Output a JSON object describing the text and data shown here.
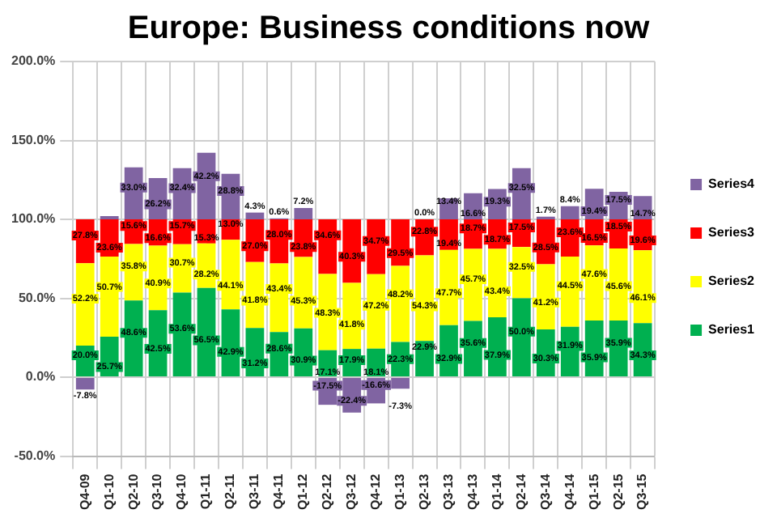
{
  "chart_data": {
    "type": "bar",
    "title": "Europe: Business conditions now",
    "stacked": true,
    "legend": "right",
    "grid": true,
    "categories": [
      "Q4-09",
      "Q1-10",
      "Q2-10",
      "Q3-10",
      "Q4-10",
      "Q1-11",
      "Q2-11",
      "Q3-11",
      "Q4-11",
      "Q1-12",
      "Q2-12",
      "Q3-12",
      "Q4-12",
      "Q1-13",
      "Q2-13",
      "Q3-13",
      "Q4-13",
      "Q1-14",
      "Q2-14",
      "Q3-14",
      "Q4-14",
      "Q1-15",
      "Q2-15",
      "Q3-15"
    ],
    "ylim": [
      -50,
      200
    ],
    "yticks": [
      {
        "value": -50,
        "label": "-50.0%"
      },
      {
        "value": 0,
        "label": "0.0%"
      },
      {
        "value": 50,
        "label": "50.0%"
      },
      {
        "value": 100,
        "label": "100.0%"
      },
      {
        "value": 150,
        "label": "150.0%"
      },
      {
        "value": 200,
        "label": "200.0%"
      }
    ],
    "series": [
      {
        "name": "Series1",
        "color": "#00b050",
        "values": [
          20.0,
          25.7,
          48.6,
          42.5,
          53.6,
          56.5,
          42.9,
          31.2,
          28.6,
          30.9,
          17.1,
          17.9,
          18.1,
          22.3,
          22.9,
          32.9,
          35.6,
          37.9,
          50.0,
          30.3,
          31.9,
          35.9,
          35.9,
          34.3
        ],
        "value_labels": [
          "20.0%",
          "25.7%",
          "48.6%",
          "42.5%",
          "53.6%",
          "56.5%",
          "42.9%",
          "31.2%",
          "28.6%",
          "30.9%",
          "17.1%",
          "17.9%",
          "18.1%",
          "22.3%",
          "22.9%",
          "32.9%",
          "35.6%",
          "37.9%",
          "50.0%",
          "30.3%",
          "31.9%",
          "35.9%",
          "35.9%",
          "34.3%"
        ]
      },
      {
        "name": "Series2",
        "color": "#ffff00",
        "values": [
          52.2,
          50.7,
          35.8,
          40.9,
          30.7,
          28.2,
          44.1,
          41.8,
          43.4,
          45.3,
          48.3,
          41.8,
          47.2,
          48.2,
          54.3,
          47.7,
          45.7,
          43.4,
          32.5,
          41.2,
          44.5,
          47.6,
          45.6,
          46.1
        ],
        "value_labels": [
          "52.2%",
          "50.7%",
          "35.8%",
          "40.9%",
          "30.7%",
          "28.2%",
          "44.1%",
          "41.8%",
          "43.4%",
          "45.3%",
          "48.3%",
          "41.8%",
          "47.2%",
          "48.2%",
          "54.3%",
          "47.7%",
          "45.7%",
          "43.4%",
          "32.5%",
          "41.2%",
          "44.5%",
          "47.6%",
          "45.6%",
          "46.1%"
        ]
      },
      {
        "name": "Series3",
        "color": "#ff0000",
        "values": [
          27.8,
          23.6,
          15.6,
          16.6,
          15.7,
          15.3,
          13.0,
          27.0,
          28.0,
          23.8,
          34.6,
          40.3,
          34.7,
          29.5,
          22.8,
          19.4,
          18.7,
          18.7,
          17.5,
          28.5,
          23.6,
          16.5,
          18.5,
          19.6
        ],
        "value_labels": [
          "27.8%",
          "23.6%",
          "15.6%",
          "16.6%",
          "15.7%",
          "15.3%",
          "13.0%",
          "27.0%",
          "28.0%",
          "23.8%",
          "34.6%",
          "40.3%",
          "34.7%",
          "29.5%",
          "22.8%",
          "19.4%",
          "18.7%",
          "18.7%",
          "17.5%",
          "28.5%",
          "23.6%",
          "16.5%",
          "18.5%",
          "19.6%"
        ]
      },
      {
        "name": "Series4",
        "color": "#8064a2",
        "values": [
          -7.8,
          2,
          33.0,
          26.2,
          32.4,
          42.2,
          28.8,
          4.3,
          0.6,
          7.2,
          -17.5,
          -22.4,
          -16.6,
          -7.3,
          0.0,
          13.4,
          16.6,
          19.3,
          32.5,
          1.7,
          8.4,
          19.4,
          17.5,
          14.7
        ],
        "value_labels": [
          "-7.8%",
          null,
          "33.0%",
          "26.2%",
          "32.4%",
          "42.2%",
          "28.8%",
          "4.3%",
          "0.6%",
          "7.2%",
          "-17.5%",
          "-22.4%",
          "-16.6%",
          "-7.3%",
          "0.0%",
          "13.4%",
          "16.6%",
          "19.3%",
          "32.5%",
          "1.7%",
          "8.4%",
          "19.4%",
          "17.5%",
          "14.7%"
        ]
      }
    ]
  }
}
